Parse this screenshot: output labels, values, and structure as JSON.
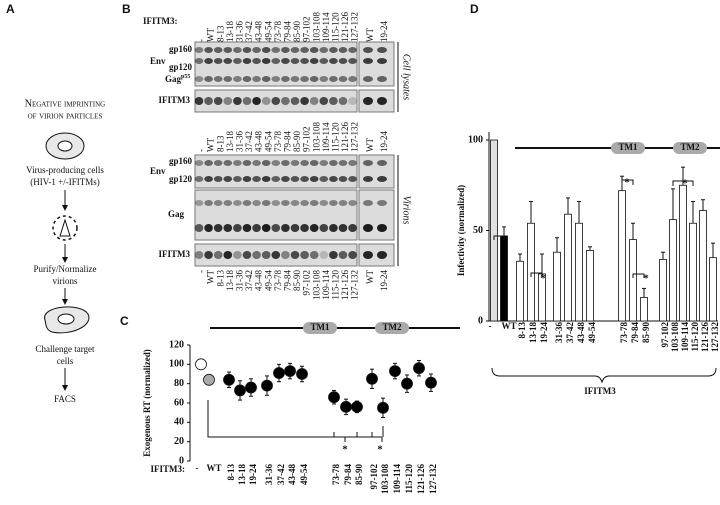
{
  "panel_a": {
    "label": "A",
    "heading": [
      "Negative imprinting",
      "of virion particles"
    ],
    "steps": [
      [
        "Virus-producing cells",
        "(HIV-1 +/-IFITMs)"
      ],
      [
        "Purify/Normalize",
        "virions"
      ],
      [
        "Challenge target",
        "cells"
      ],
      [
        "FACS"
      ]
    ]
  },
  "panel_b": {
    "label": "B",
    "lanes_label": "IFITM3:",
    "lanes": [
      "-",
      "WT",
      "8-13",
      "13-18",
      "31-36",
      "37-42",
      "43-48",
      "49-54",
      "73-78",
      "79-84",
      "85-90",
      "97-102",
      "103-108",
      "109-114",
      "115-120",
      "121-126",
      "127-132"
    ],
    "lanes_right": [
      "WT",
      "19-24"
    ],
    "env": "Env",
    "gp160": "gp160",
    "gp120": "gp120",
    "gag": "Gag",
    "gag_super": "p55",
    "ifitm3": "IFITM3",
    "cell_lysates": "Cell lysates",
    "virions": "Virions"
  },
  "chart_data": [
    {
      "label": "C",
      "type": "dot",
      "y_label": "Exogenous RT (normalized)",
      "x_label": "IFITM3:",
      "categories": [
        "-",
        "WT",
        "8-13",
        "13-18",
        "19-24",
        "31-36",
        "37-42",
        "43-48",
        "49-54",
        "73-78",
        "79-84",
        "85-90",
        "97-102",
        "103-108",
        "109-114",
        "115-120",
        "121-126",
        "127-132"
      ],
      "values": [
        100,
        84,
        84,
        73,
        76,
        78,
        91,
        93,
        90,
        66,
        56,
        56,
        85,
        55,
        93,
        80,
        96,
        81
      ],
      "errors": [
        null,
        4,
        8,
        10,
        9,
        10,
        9,
        8,
        8,
        7,
        8,
        6,
        10,
        10,
        8,
        9,
        8,
        9
      ],
      "colors": [
        "#ffffff",
        "#aaaaaa",
        "#000000",
        "#000000",
        "#000000",
        "#000000",
        "#000000",
        "#000000",
        "#000000",
        "#000000",
        "#000000",
        "#000000",
        "#000000",
        "#000000",
        "#000000",
        "#000000",
        "#000000",
        "#000000"
      ],
      "ylim": [
        0,
        120
      ],
      "yticks": [
        0,
        20,
        40,
        60,
        80,
        100,
        120
      ],
      "domains": [
        "TM1",
        "TM2"
      ],
      "annotations": [
        "*",
        "*"
      ]
    },
    {
      "label": "D",
      "type": "bar",
      "y_label": "Infectivity (normalized)",
      "x_label": "IFITM3",
      "categories": [
        "-",
        "WT",
        "8-13",
        "13-18",
        "19-24",
        "31-36",
        "37-42",
        "43-48",
        "49-54",
        "73-78",
        "79-84",
        "85-90",
        "97-102",
        "103-108",
        "109-114",
        "115-120",
        "121-126",
        "127-132"
      ],
      "values": [
        100,
        47,
        33,
        54,
        26,
        38,
        59,
        54,
        39,
        72,
        45,
        13,
        34,
        56,
        75,
        54,
        61,
        35
      ],
      "errors": [
        null,
        5,
        4,
        12,
        11,
        8,
        9,
        12,
        2,
        8,
        9,
        5,
        4,
        17,
        10,
        12,
        6,
        8
      ],
      "colors": [
        "#e0e0e0",
        "#000000",
        "#ffffff",
        "#ffffff",
        "#ffffff",
        "#ffffff",
        "#ffffff",
        "#ffffff",
        "#ffffff",
        "#ffffff",
        "#ffffff",
        "#ffffff",
        "#ffffff",
        "#ffffff",
        "#ffffff",
        "#ffffff",
        "#ffffff",
        "#ffffff"
      ],
      "ylim": [
        0,
        100
      ],
      "yticks": [
        0,
        50,
        100
      ],
      "domains": [
        "TM1",
        "TM2"
      ],
      "annotations": [
        "*",
        "*",
        "*",
        "*"
      ]
    }
  ]
}
